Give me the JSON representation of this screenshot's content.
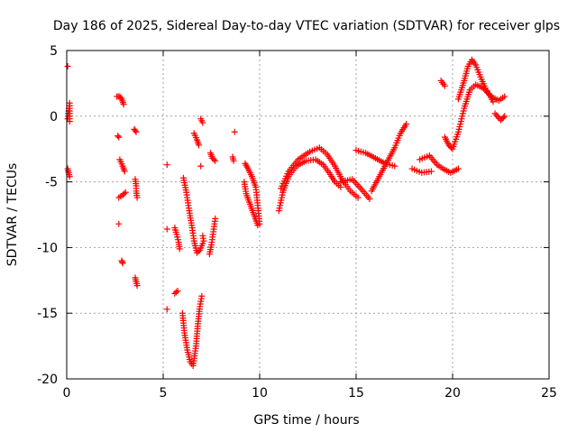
{
  "chart_data": {
    "type": "scatter",
    "title": "Day 186 of 2025, Sidereal Day-to-day VTEC variation (SDTVAR) for receiver glps",
    "xlabel": "GPS time / hours",
    "ylabel": "SDTVAR / TECUs",
    "xlim": [
      0,
      25
    ],
    "ylim": [
      -20,
      5
    ],
    "xticks": [
      0,
      5,
      10,
      15,
      20,
      25
    ],
    "yticks": [
      -20,
      -15,
      -10,
      -5,
      0,
      5
    ],
    "xtick_labels": [
      "0",
      "5",
      "10",
      "15",
      "20",
      "25"
    ],
    "ytick_labels": [
      "-20",
      "-15",
      "-10",
      "-5",
      "0",
      "5"
    ],
    "grid": true,
    "marker": "+",
    "series": [
      {
        "name": "SDTVAR",
        "color": "#ff0000",
        "tracks": [
          [
            [
              0.05,
              3.8
            ]
          ],
          [
            [
              0.05,
              -0.2
            ],
            [
              0.1,
              0.4
            ],
            [
              0.15,
              1.0
            ],
            [
              0.15,
              -0.4
            ]
          ],
          [
            [
              0.05,
              -4.0
            ],
            [
              0.1,
              -4.3
            ],
            [
              0.15,
              -4.6
            ]
          ],
          [
            [
              2.6,
              1.5
            ],
            [
              2.75,
              1.5
            ],
            [
              2.85,
              1.3
            ],
            [
              2.95,
              0.9
            ]
          ],
          [
            [
              2.65,
              -1.5
            ],
            [
              2.7,
              -1.6
            ]
          ],
          [
            [
              2.75,
              -3.3
            ],
            [
              2.9,
              -3.8
            ],
            [
              3.0,
              -4.2
            ]
          ],
          [
            [
              2.7,
              -6.2
            ],
            [
              2.9,
              -6.0
            ],
            [
              3.05,
              -5.8
            ]
          ],
          [
            [
              2.7,
              -8.2
            ]
          ],
          [
            [
              2.85,
              -11.0
            ],
            [
              2.9,
              -11.2
            ]
          ],
          [
            [
              3.5,
              -1.0
            ],
            [
              3.6,
              -1.2
            ]
          ],
          [
            [
              3.55,
              -4.8
            ],
            [
              3.6,
              -5.3
            ],
            [
              3.6,
              -5.7
            ],
            [
              3.65,
              -6.2
            ]
          ],
          [
            [
              3.55,
              -12.3
            ],
            [
              3.6,
              -12.6
            ],
            [
              3.65,
              -12.9
            ]
          ],
          [
            [
              5.2,
              -3.7
            ]
          ],
          [
            [
              5.2,
              -8.6
            ]
          ],
          [
            [
              5.2,
              -14.7
            ]
          ],
          [
            [
              5.6,
              -8.5
            ],
            [
              5.7,
              -9.0
            ],
            [
              5.8,
              -9.6
            ],
            [
              5.85,
              -10.1
            ]
          ],
          [
            [
              5.6,
              -13.5
            ],
            [
              5.75,
              -13.3
            ]
          ],
          [
            [
              6.05,
              -4.7
            ],
            [
              6.2,
              -5.8
            ],
            [
              6.35,
              -7.2
            ],
            [
              6.5,
              -8.5
            ],
            [
              6.6,
              -9.5
            ],
            [
              6.75,
              -10.4
            ],
            [
              6.9,
              -10.2
            ],
            [
              7.05,
              -9.7
            ]
          ],
          [
            [
              6.0,
              -15.0
            ],
            [
              6.1,
              -16.5
            ],
            [
              6.25,
              -17.8
            ],
            [
              6.4,
              -18.7
            ],
            [
              6.55,
              -19.0
            ],
            [
              6.7,
              -17.5
            ],
            [
              6.8,
              -15.8
            ],
            [
              6.9,
              -14.5
            ],
            [
              7.0,
              -13.7
            ]
          ],
          [
            [
              6.6,
              -1.3
            ],
            [
              6.75,
              -1.8
            ],
            [
              6.85,
              -2.2
            ]
          ],
          [
            [
              6.95,
              -0.2
            ],
            [
              7.05,
              -0.5
            ]
          ],
          [
            [
              6.95,
              -3.8
            ]
          ],
          [
            [
              7.05,
              -9.1
            ],
            [
              7.1,
              -9.5
            ]
          ],
          [
            [
              7.4,
              -10.5
            ],
            [
              7.5,
              -9.8
            ],
            [
              7.6,
              -8.8
            ],
            [
              7.7,
              -7.8
            ]
          ],
          [
            [
              7.45,
              -2.8
            ],
            [
              7.55,
              -3.2
            ],
            [
              7.7,
              -3.4
            ]
          ],
          [
            [
              8.7,
              -1.2
            ]
          ],
          [
            [
              8.6,
              -3.1
            ],
            [
              8.65,
              -3.4
            ]
          ],
          [
            [
              9.2,
              -5.0
            ],
            [
              9.3,
              -5.9
            ],
            [
              9.5,
              -6.7
            ],
            [
              9.7,
              -7.5
            ],
            [
              9.9,
              -8.3
            ]
          ],
          [
            [
              9.25,
              -3.6
            ],
            [
              9.4,
              -4.0
            ],
            [
              9.6,
              -4.6
            ],
            [
              9.8,
              -5.4
            ],
            [
              9.9,
              -6.8
            ],
            [
              10.0,
              -8.2
            ]
          ],
          [
            [
              11.0,
              -7.2
            ],
            [
              11.2,
              -5.8
            ],
            [
              11.5,
              -4.6
            ],
            [
              11.9,
              -3.8
            ],
            [
              12.4,
              -3.4
            ],
            [
              12.9,
              -3.3
            ],
            [
              13.3,
              -3.7
            ],
            [
              13.6,
              -4.3
            ],
            [
              13.9,
              -5.0
            ],
            [
              14.2,
              -5.4
            ]
          ],
          [
            [
              11.1,
              -5.5
            ],
            [
              11.5,
              -4.2
            ],
            [
              12.0,
              -3.3
            ],
            [
              12.6,
              -2.7
            ],
            [
              13.1,
              -2.4
            ],
            [
              13.5,
              -2.9
            ],
            [
              13.9,
              -3.8
            ],
            [
              14.3,
              -4.9
            ],
            [
              14.7,
              -5.7
            ],
            [
              15.1,
              -6.2
            ]
          ],
          [
            [
              14.2,
              -5.0
            ],
            [
              14.8,
              -4.8
            ],
            [
              15.3,
              -5.6
            ],
            [
              15.7,
              -6.3
            ]
          ],
          [
            [
              15.0,
              -2.6
            ],
            [
              15.5,
              -2.8
            ],
            [
              16.0,
              -3.2
            ],
            [
              16.5,
              -3.6
            ],
            [
              17.0,
              -3.8
            ]
          ],
          [
            [
              15.8,
              -5.7
            ],
            [
              16.2,
              -4.6
            ],
            [
              16.6,
              -3.5
            ],
            [
              17.0,
              -2.4
            ],
            [
              17.3,
              -1.3
            ],
            [
              17.6,
              -0.6
            ]
          ],
          [
            [
              17.9,
              -4.0
            ],
            [
              18.4,
              -4.3
            ],
            [
              18.9,
              -4.2
            ]
          ],
          [
            [
              18.3,
              -3.3
            ],
            [
              18.8,
              -3.0
            ],
            [
              19.2,
              -3.7
            ],
            [
              19.5,
              -4.0
            ],
            [
              19.9,
              -4.3
            ],
            [
              20.3,
              -4.0
            ]
          ],
          [
            [
              19.4,
              2.7
            ],
            [
              19.6,
              2.3
            ]
          ],
          [
            [
              19.6,
              -1.6
            ],
            [
              19.8,
              -2.2
            ],
            [
              20.0,
              -2.5
            ],
            [
              20.3,
              -1.2
            ],
            [
              20.6,
              0.6
            ],
            [
              20.9,
              2.0
            ],
            [
              21.2,
              2.4
            ],
            [
              21.5,
              2.2
            ],
            [
              21.8,
              1.9
            ],
            [
              22.1,
              1.1
            ]
          ],
          [
            [
              20.3,
              1.3
            ],
            [
              20.6,
              2.7
            ],
            [
              20.8,
              3.8
            ],
            [
              21.0,
              4.3
            ],
            [
              21.2,
              3.9
            ],
            [
              21.5,
              2.8
            ],
            [
              21.8,
              1.8
            ],
            [
              22.1,
              1.4
            ],
            [
              22.4,
              1.2
            ],
            [
              22.7,
              1.5
            ]
          ],
          [
            [
              22.2,
              0.2
            ],
            [
              22.5,
              -0.3
            ],
            [
              22.7,
              0.0
            ]
          ]
        ]
      }
    ]
  }
}
